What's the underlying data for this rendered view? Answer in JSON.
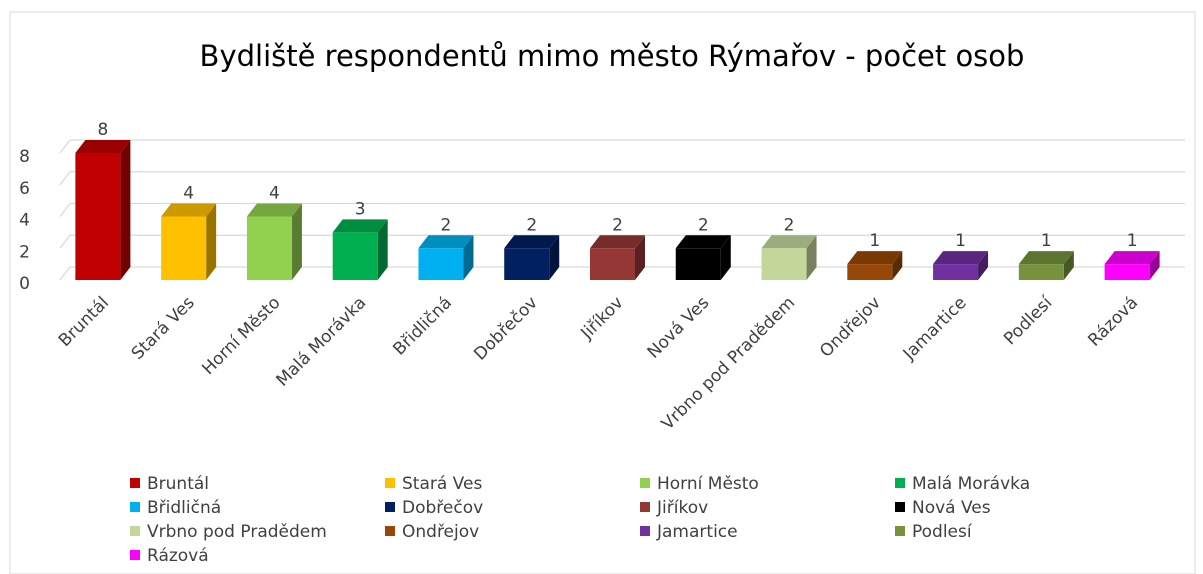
{
  "chart_data": {
    "type": "bar3d",
    "title": "Bydliště respondentů mimo město Rýmařov - počet osob",
    "categories": [
      "Bruntál",
      "Stará Ves",
      "Horní Město",
      "Malá Morávka",
      "Břidličná",
      "Dobřečov",
      "Jiříkov",
      "Nová Ves",
      "Vrbno pod Pradědem",
      "Ondřejov",
      "Jamartice",
      "Podlesí",
      "Rázová"
    ],
    "values": [
      8,
      4,
      4,
      3,
      2,
      2,
      2,
      2,
      2,
      1,
      1,
      1,
      1
    ],
    "colors": [
      "#c00000",
      "#ffc000",
      "#92d050",
      "#00b050",
      "#00b0f0",
      "#002060",
      "#953735",
      "#000000",
      "#c4d79b",
      "#974706",
      "#7030a0",
      "#76923c",
      "#ff00ff"
    ],
    "ylim": [
      0,
      8
    ],
    "yticks": [
      0,
      2,
      4,
      6,
      8
    ],
    "grid": true
  }
}
